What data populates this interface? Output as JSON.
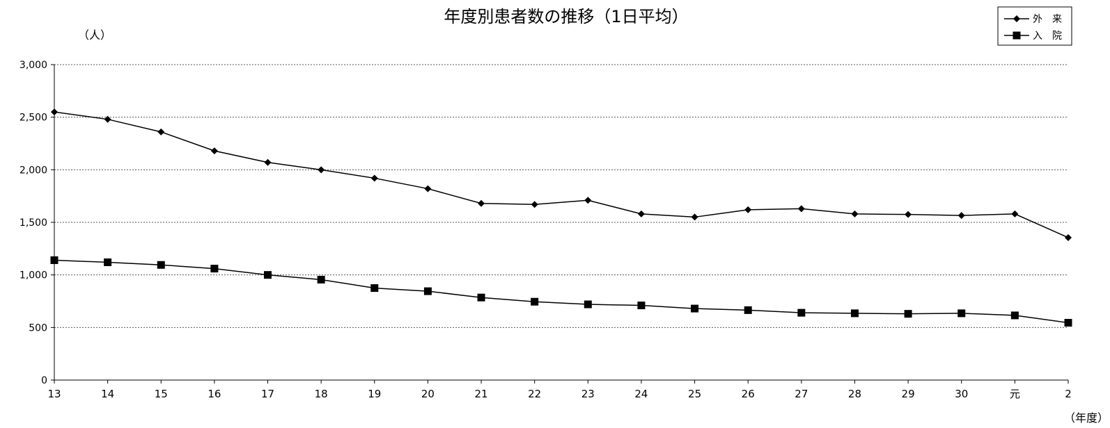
{
  "chart_data": {
    "type": "line",
    "title": "年度別患者数の推移（1日平均）",
    "y_unit_label": "（人）",
    "x_unit_label": "（年度）",
    "categories": [
      "13",
      "14",
      "15",
      "16",
      "17",
      "18",
      "19",
      "20",
      "21",
      "22",
      "23",
      "24",
      "25",
      "26",
      "27",
      "28",
      "29",
      "30",
      "元",
      "2"
    ],
    "ylim": [
      0,
      3000
    ],
    "y_ticks": [
      0,
      500,
      1000,
      1500,
      2000,
      2500,
      3000
    ],
    "y_tick_labels": [
      "0",
      "500",
      "1,000",
      "1,500",
      "2,000",
      "2,500",
      "3,000"
    ],
    "grid": true,
    "legend_position": "top-right",
    "series": [
      {
        "name": "外　来",
        "marker": "diamond",
        "values": [
          2550,
          2480,
          2360,
          2180,
          2070,
          2000,
          1920,
          1820,
          1680,
          1670,
          1710,
          1580,
          1550,
          1620,
          1630,
          1580,
          1575,
          1565,
          1580,
          1355
        ]
      },
      {
        "name": "入　院",
        "marker": "square",
        "values": [
          1140,
          1120,
          1095,
          1060,
          1000,
          955,
          875,
          845,
          785,
          745,
          720,
          710,
          680,
          665,
          640,
          635,
          630,
          635,
          615,
          545
        ]
      }
    ]
  }
}
